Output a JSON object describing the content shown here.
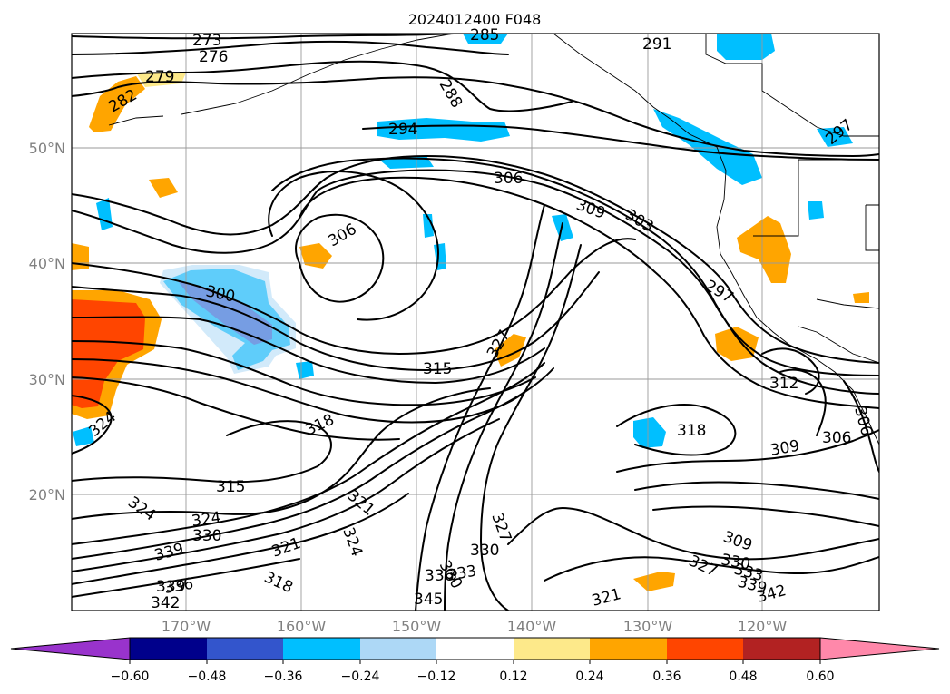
{
  "title": "2024012400 F048",
  "lat_labels": [
    "50°N",
    "40°N",
    "30°N",
    "20°N"
  ],
  "lon_labels": [
    "170°W",
    "160°W",
    "150°W",
    "140°W",
    "130°W",
    "120°W"
  ],
  "colorbar": {
    "ticks": [
      "−0.60",
      "−0.48",
      "−0.36",
      "−0.24",
      "−0.12",
      "0.12",
      "0.24",
      "0.36",
      "0.48",
      "0.60"
    ],
    "colors": [
      "#9933cc",
      "#00008b",
      "#3355cc",
      "#00bfff",
      "#add8f6",
      "#ffffff",
      "#fde98a",
      "#ffa500",
      "#ff4500",
      "#b22222",
      "#ff88aa"
    ]
  },
  "contour_labels": [
    "273",
    "276",
    "279",
    "282",
    "285",
    "288",
    "291",
    "294",
    "297",
    "297",
    "300",
    "303",
    "306",
    "306",
    "306",
    "309",
    "309",
    "309",
    "312",
    "315",
    "315",
    "318",
    "318",
    "318",
    "321",
    "321",
    "321",
    "324",
    "324",
    "324",
    "324",
    "327",
    "327",
    "327",
    "330",
    "330",
    "330",
    "330",
    "333",
    "333",
    "336",
    "336",
    "339",
    "339",
    "339",
    "342",
    "342",
    "345",
    "306"
  ]
}
